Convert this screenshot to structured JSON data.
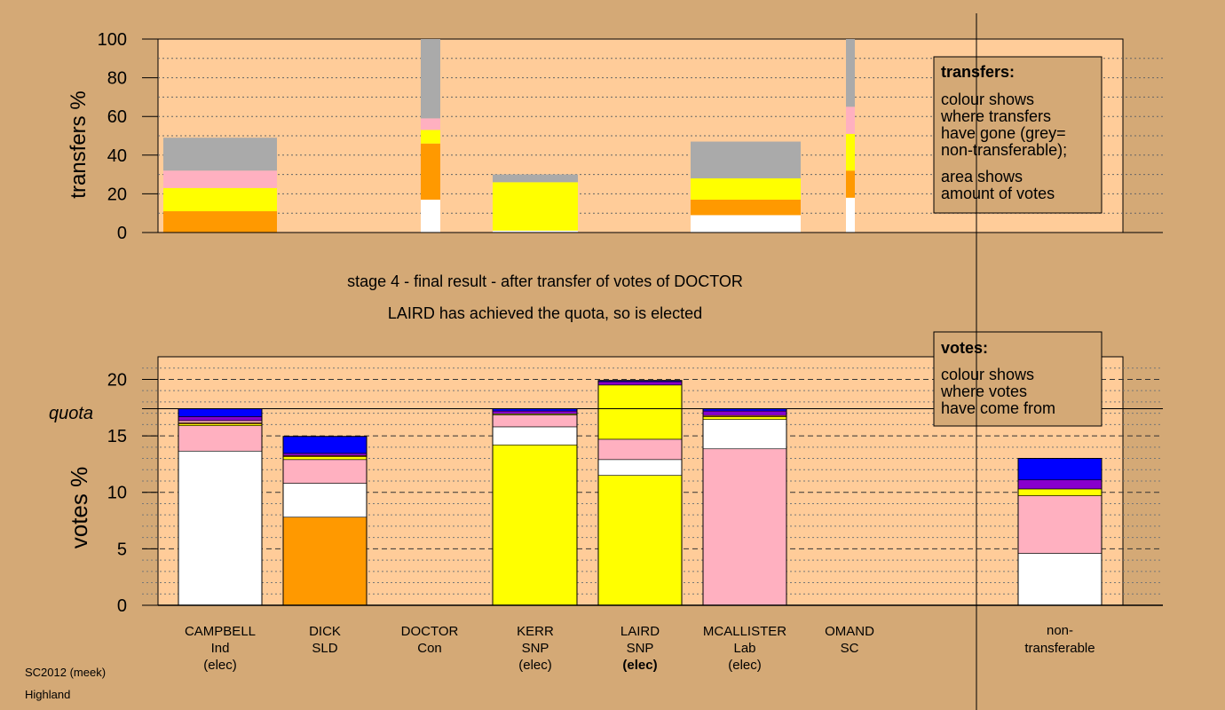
{
  "chart_data": [
    {
      "type": "bar",
      "stacked": true,
      "ylabel": "transfers %",
      "ylim": [
        0,
        100
      ],
      "yticks": [
        0,
        20,
        40,
        60,
        80,
        100
      ],
      "grid": true,
      "legend_box": {
        "title": "transfers:",
        "lines": [
          "colour shows",
          "where transfers",
          "have gone (grey=",
          "non-transferable);"
        ],
        "lines2": [
          "area shows",
          "amount of votes"
        ]
      },
      "bars": [
        {
          "candidate": "CAMPBELL",
          "segments": [
            {
              "color": "#ff9900",
              "value": 11
            },
            {
              "color": "#ffff00",
              "value": 12
            },
            {
              "color": "#ffb0c0",
              "value": 9
            },
            {
              "color": "#aaaaaa",
              "value": 17
            }
          ]
        },
        {
          "candidate": "DICK",
          "segments": []
        },
        {
          "candidate": "DOCTOR",
          "segments": [
            {
              "color": "#ffffff",
              "value": 17
            },
            {
              "color": "#ff9900",
              "value": 29
            },
            {
              "color": "#ffff00",
              "value": 7
            },
            {
              "color": "#ffb0c0",
              "value": 6
            },
            {
              "color": "#aaaaaa",
              "value": 41
            }
          ]
        },
        {
          "candidate": "KERR",
          "segments": [
            {
              "color": "#ffffff",
              "value": 1
            },
            {
              "color": "#ffff00",
              "value": 25
            },
            {
              "color": "#aaaaaa",
              "value": 4
            }
          ]
        },
        {
          "candidate": "LAIRD",
          "segments": []
        },
        {
          "candidate": "MCALLISTER",
          "segments": [
            {
              "color": "#ffffff",
              "value": 9
            },
            {
              "color": "#ff9900",
              "value": 8
            },
            {
              "color": "#ffff00",
              "value": 11
            },
            {
              "color": "#aaaaaa",
              "value": 19
            }
          ]
        },
        {
          "candidate": "OMAND",
          "segments": [
            {
              "color": "#ffffff",
              "value": 18
            },
            {
              "color": "#ff9900",
              "value": 14
            },
            {
              "color": "#ffff00",
              "value": 19
            },
            {
              "color": "#ffb0c0",
              "value": 14
            },
            {
              "color": "#aaaaaa",
              "value": 35
            }
          ]
        }
      ]
    },
    {
      "type": "bar",
      "stacked": true,
      "ylabel": "votes %",
      "ylim": [
        0,
        22
      ],
      "yticks": [
        0,
        5,
        10,
        15,
        20
      ],
      "quota_label": "quota",
      "quota": 17.4,
      "grid": true,
      "legend_box": {
        "title": "votes:",
        "lines": [
          "colour shows",
          "where votes",
          "have come from"
        ]
      },
      "categories": [
        {
          "name": "CAMPBELL",
          "party": "Ind",
          "status": "(elec)"
        },
        {
          "name": "DICK",
          "party": "SLD",
          "status": ""
        },
        {
          "name": "DOCTOR",
          "party": "Con",
          "status": ""
        },
        {
          "name": "KERR",
          "party": "SNP",
          "status": "(elec)"
        },
        {
          "name": "LAIRD",
          "party": "SNP",
          "status": "(elec)"
        },
        {
          "name": "MCALLISTER",
          "party": "Lab",
          "status": "(elec)"
        },
        {
          "name": "OMAND",
          "party": "SC",
          "status": ""
        }
      ],
      "nontransferable": {
        "line1": "non-",
        "line2": "transferable"
      },
      "bars": [
        {
          "candidate": "CAMPBELL",
          "segments": [
            {
              "color": "#ffffff",
              "value": 13.65
            },
            {
              "color": "#ffb0c0",
              "value": 2.25
            },
            {
              "color": "#ffff00",
              "value": 0.15
            },
            {
              "color": "#ff9900",
              "value": 0.1
            },
            {
              "color": "#ffb0c0",
              "value": 0.2
            },
            {
              "color": "#8800cc",
              "value": 0.35
            },
            {
              "color": "#0000ff",
              "value": 0.7
            }
          ]
        },
        {
          "candidate": "DICK",
          "segments": [
            {
              "color": "#ff9900",
              "value": 7.8
            },
            {
              "color": "#ffffff",
              "value": 3.0
            },
            {
              "color": "#ffb0c0",
              "value": 2.1
            },
            {
              "color": "#ffff00",
              "value": 0.25
            },
            {
              "color": "#ff9900",
              "value": 0.1
            },
            {
              "color": "#8800cc",
              "value": 0.2
            },
            {
              "color": "#0000ff",
              "value": 1.5
            }
          ]
        },
        {
          "candidate": "DOCTOR",
          "segments": []
        },
        {
          "candidate": "KERR",
          "segments": [
            {
              "color": "#ffff00",
              "value": 14.2
            },
            {
              "color": "#ffffff",
              "value": 1.6
            },
            {
              "color": "#ffb0c0",
              "value": 1.05
            },
            {
              "color": "#ffff00",
              "value": 0.1
            },
            {
              "color": "#8800cc",
              "value": 0.25
            },
            {
              "color": "#0000ff",
              "value": 0.2
            }
          ]
        },
        {
          "candidate": "LAIRD",
          "segments": [
            {
              "color": "#ffff00",
              "value": 11.5
            },
            {
              "color": "#ffffff",
              "value": 1.4
            },
            {
              "color": "#ffb0c0",
              "value": 1.8
            },
            {
              "color": "#ffff00",
              "value": 4.8
            },
            {
              "color": "#8800cc",
              "value": 0.3
            },
            {
              "color": "#0000ff",
              "value": 0.1
            }
          ]
        },
        {
          "candidate": "MCALLISTER",
          "segments": [
            {
              "color": "#ffb0c0",
              "value": 13.85
            },
            {
              "color": "#ffffff",
              "value": 2.6
            },
            {
              "color": "#ffff00",
              "value": 0.25
            },
            {
              "color": "#ff9900",
              "value": 0.1
            },
            {
              "color": "#8800cc",
              "value": 0.4
            },
            {
              "color": "#0000ff",
              "value": 0.2
            }
          ]
        },
        {
          "candidate": "OMAND",
          "segments": []
        },
        {
          "candidate": "non-transferable",
          "segments": [
            {
              "color": "#ffffff",
              "value": 4.6
            },
            {
              "color": "#ffb0c0",
              "value": 5.1
            },
            {
              "color": "#ffff00",
              "value": 0.6
            },
            {
              "color": "#8800cc",
              "value": 0.8
            },
            {
              "color": "#0000ff",
              "value": 1.9
            }
          ]
        }
      ]
    }
  ],
  "stage_text": "stage 4 - final result - after transfer of votes of DOCTOR",
  "result_text": "LAIRD has achieved the quota, so is elected",
  "footer": {
    "line1": "SC2012 (meek)",
    "line2": "Highland"
  }
}
